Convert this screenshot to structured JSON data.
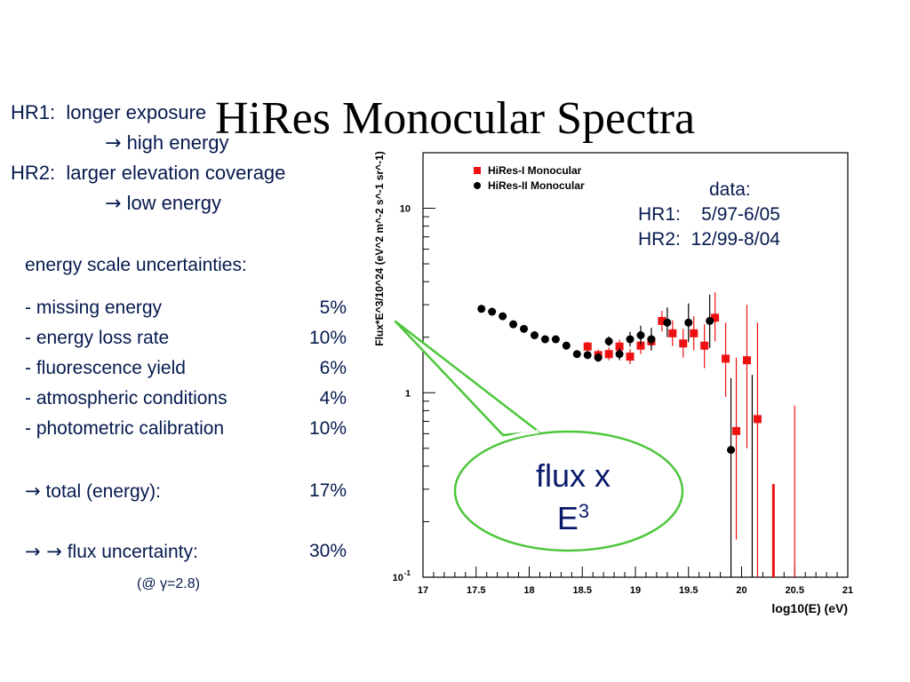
{
  "slide": {
    "title": "HiRes Monocular Spectra",
    "notes": {
      "hr1_label": "HR1:",
      "hr1_text": "longer exposure",
      "hr1_arrow": "→",
      "hr1_result": "high energy",
      "hr2_label": "HR2:",
      "hr2_text": "larger elevation coverage",
      "hr2_arrow": "→",
      "hr2_result": "low energy"
    },
    "uncertainties": {
      "heading": "energy scale uncertainties:",
      "rows": [
        {
          "label": "- missing energy",
          "value": "5%"
        },
        {
          "label": "- energy loss rate",
          "value": "10%"
        },
        {
          "label": "- fluorescence yield",
          "value": "6%"
        },
        {
          "label": "- atmospheric conditions",
          "value": "4%"
        },
        {
          "label": "- photometric calibration",
          "value": "10%"
        }
      ],
      "total_arrow": "→",
      "total_label": "total (energy):",
      "total_value": "17%",
      "flux_arrows": "→ →",
      "flux_label": "flux uncertainty:",
      "flux_value": "30%",
      "gamma_note": "(@ γ=2.8)"
    },
    "callout": {
      "line1": "flux x",
      "line2": "E",
      "superscript": "3",
      "border_color": "#4cc63a"
    },
    "data_info": {
      "heading": "data:",
      "hr1": "HR1:    5/97-6/05",
      "hr2": "HR2:  12/99-8/04"
    }
  },
  "chart_data": {
    "type": "scatter",
    "title": "",
    "xlabel": "log10(E) (eV)",
    "ylabel": "Flux*E^3/10^24 (eV^2 m^-2 s^-1 sr^-1)",
    "xlim": [
      17,
      21
    ],
    "ylim": [
      0.1,
      20
    ],
    "ylog": true,
    "x_ticks": [
      "17",
      "17.5",
      "18",
      "18.5",
      "19",
      "19.5",
      "20",
      "20.5",
      "21"
    ],
    "y_ticks": [
      {
        "value": 0.1,
        "base": "10",
        "exp": "-1"
      },
      {
        "value": 1,
        "base": "1",
        "exp": ""
      },
      {
        "value": 10,
        "base": "10",
        "exp": ""
      }
    ],
    "legend_position": "top-left",
    "series": [
      {
        "name": "HiRes-I Monocular",
        "color": "#ee1111",
        "marker": "square",
        "points": [
          {
            "x": 18.55,
            "y": 1.78,
            "lo": 1.68,
            "hi": 1.89
          },
          {
            "x": 18.65,
            "y": 1.6,
            "lo": 1.5,
            "hi": 1.71
          },
          {
            "x": 18.75,
            "y": 1.62,
            "lo": 1.5,
            "hi": 1.76
          },
          {
            "x": 18.85,
            "y": 1.78,
            "lo": 1.64,
            "hi": 1.94
          },
          {
            "x": 18.95,
            "y": 1.57,
            "lo": 1.43,
            "hi": 1.73
          },
          {
            "x": 19.05,
            "y": 1.8,
            "lo": 1.62,
            "hi": 2.0
          },
          {
            "x": 19.15,
            "y": 1.9,
            "lo": 1.69,
            "hi": 2.13
          },
          {
            "x": 19.25,
            "y": 2.45,
            "lo": 2.15,
            "hi": 2.78
          },
          {
            "x": 19.35,
            "y": 2.1,
            "lo": 1.79,
            "hi": 2.47
          },
          {
            "x": 19.45,
            "y": 1.85,
            "lo": 1.55,
            "hi": 2.22
          },
          {
            "x": 19.55,
            "y": 2.1,
            "lo": 1.7,
            "hi": 2.6
          },
          {
            "x": 19.65,
            "y": 1.8,
            "lo": 1.36,
            "hi": 2.35
          },
          {
            "x": 19.75,
            "y": 2.55,
            "lo": 1.9,
            "hi": 3.5
          },
          {
            "x": 19.85,
            "y": 1.53,
            "lo": 0.95,
            "hi": 2.4
          },
          {
            "x": 19.95,
            "y": 0.62,
            "lo": 0.16,
            "hi": 1.55
          },
          {
            "x": 20.05,
            "y": 1.5,
            "lo": 0.5,
            "hi": 3.0
          },
          {
            "x": 20.15,
            "y": 0.72,
            "lo": 0.1,
            "hi": 2.4
          },
          {
            "x": 20.3,
            "y": 0.1,
            "lo": 0.1,
            "hi": 0.32
          }
        ],
        "upper_limits": [
          {
            "x": 20.5,
            "y": 0.1,
            "hi": 0.85
          }
        ]
      },
      {
        "name": "HiRes-II Monocular",
        "color": "#000000",
        "marker": "circle",
        "points": [
          {
            "x": 17.55,
            "y": 2.85,
            "lo": 2.8,
            "hi": 2.9
          },
          {
            "x": 17.65,
            "y": 2.75,
            "lo": 2.7,
            "hi": 2.8
          },
          {
            "x": 17.75,
            "y": 2.6,
            "lo": 2.55,
            "hi": 2.65
          },
          {
            "x": 17.85,
            "y": 2.35,
            "lo": 2.3,
            "hi": 2.4
          },
          {
            "x": 17.95,
            "y": 2.22,
            "lo": 2.17,
            "hi": 2.27
          },
          {
            "x": 18.05,
            "y": 2.05,
            "lo": 2.0,
            "hi": 2.1
          },
          {
            "x": 18.15,
            "y": 1.95,
            "lo": 1.9,
            "hi": 2.0
          },
          {
            "x": 18.25,
            "y": 1.95,
            "lo": 1.9,
            "hi": 2.0
          },
          {
            "x": 18.35,
            "y": 1.8,
            "lo": 1.75,
            "hi": 1.86
          },
          {
            "x": 18.45,
            "y": 1.62,
            "lo": 1.56,
            "hi": 1.68
          },
          {
            "x": 18.55,
            "y": 1.6,
            "lo": 1.53,
            "hi": 1.67
          },
          {
            "x": 18.65,
            "y": 1.55,
            "lo": 1.47,
            "hi": 1.64
          },
          {
            "x": 18.75,
            "y": 1.9,
            "lo": 1.79,
            "hi": 2.02
          },
          {
            "x": 18.85,
            "y": 1.62,
            "lo": 1.5,
            "hi": 1.75
          },
          {
            "x": 18.95,
            "y": 1.95,
            "lo": 1.78,
            "hi": 2.14
          },
          {
            "x": 19.05,
            "y": 2.05,
            "lo": 1.82,
            "hi": 2.31
          },
          {
            "x": 19.15,
            "y": 1.95,
            "lo": 1.7,
            "hi": 2.25
          },
          {
            "x": 19.3,
            "y": 2.4,
            "lo": 2.0,
            "hi": 2.9
          },
          {
            "x": 19.5,
            "y": 2.4,
            "lo": 1.88,
            "hi": 3.05
          },
          {
            "x": 19.7,
            "y": 2.45,
            "lo": 1.75,
            "hi": 3.4
          },
          {
            "x": 19.9,
            "y": 0.49,
            "lo": 0.1,
            "hi": 1.2
          }
        ],
        "upper_limits": [
          {
            "x": 20.1,
            "y": 0.1,
            "hi": 1.25
          }
        ]
      }
    ]
  }
}
